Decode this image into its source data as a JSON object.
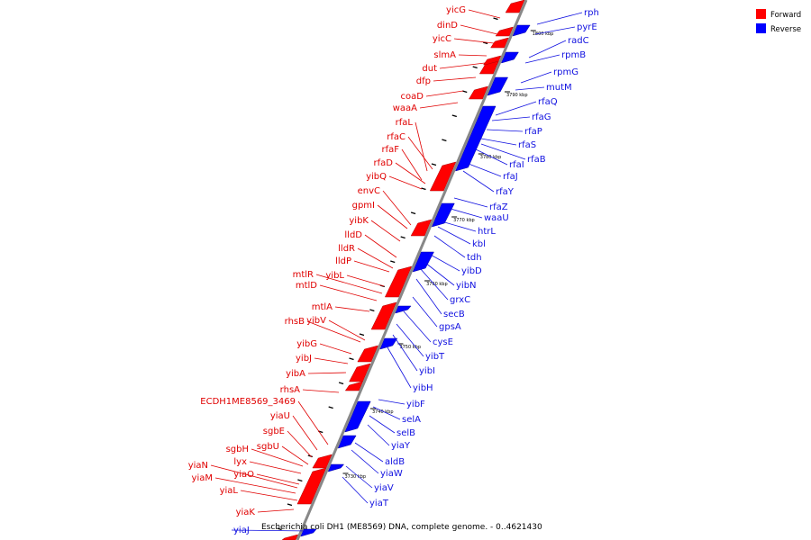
{
  "caption": "Escherichia coli DH1 (ME8569) DNA, complete genome. - 0..4621430",
  "legend": [
    {
      "label": "Forward",
      "color": "#ff0000"
    },
    {
      "label": "Reverse",
      "color": "#0000ff"
    }
  ],
  "colors": {
    "forward": "#ff0000",
    "forward_line": "#e00000",
    "reverse": "#0000ff",
    "reverse_line": "#1010e0",
    "backbone": "#888888"
  },
  "ticks": [
    "1800 kbp",
    "3790 kbp",
    "3780 kbp",
    "3770 kbp",
    "3760 kbp",
    "3750 kbp",
    "3740 kbp",
    "3730 kbp"
  ],
  "forward_labels": [
    "yicG",
    "dinD",
    "yicC",
    "slmA",
    "dut",
    "dfp",
    "coaD",
    "waaA",
    "rfaL",
    "rfaC",
    "rfaF",
    "rfaD",
    "yibQ",
    "envC",
    "gpmI",
    "yibK",
    "lldD",
    "lldR",
    "lldP",
    "mtlR",
    "yibL",
    "mtlD",
    "mtlA",
    "rhsB",
    "yibV",
    "yibG",
    "yibJ",
    "yibA",
    "rhsA",
    "ECDH1ME8569_3469",
    "yiaU",
    "sgbE",
    "sgbU",
    "sgbH",
    "lyx",
    "yiaN",
    "yiaO",
    "yiaM",
    "yiaL",
    "yiaK"
  ],
  "reverse_labels": [
    "rph",
    "pyrE",
    "radC",
    "rpmB",
    "rpmG",
    "mutM",
    "rfaQ",
    "rfaG",
    "rfaP",
    "rfaS",
    "rfaI",
    "rfaB",
    "rfaJ",
    "rfaY",
    "rfaZ",
    "waaU",
    "htrL",
    "kbl",
    "tdh",
    "yibD",
    "yibN",
    "grxC",
    "secB",
    "gpsA",
    "cysE",
    "yibT",
    "yibI",
    "yibH",
    "yibF",
    "selA",
    "selB",
    "yiaY",
    "aldB",
    "yiaW",
    "yiaV",
    "yiaT",
    "yiaJ"
  ]
}
